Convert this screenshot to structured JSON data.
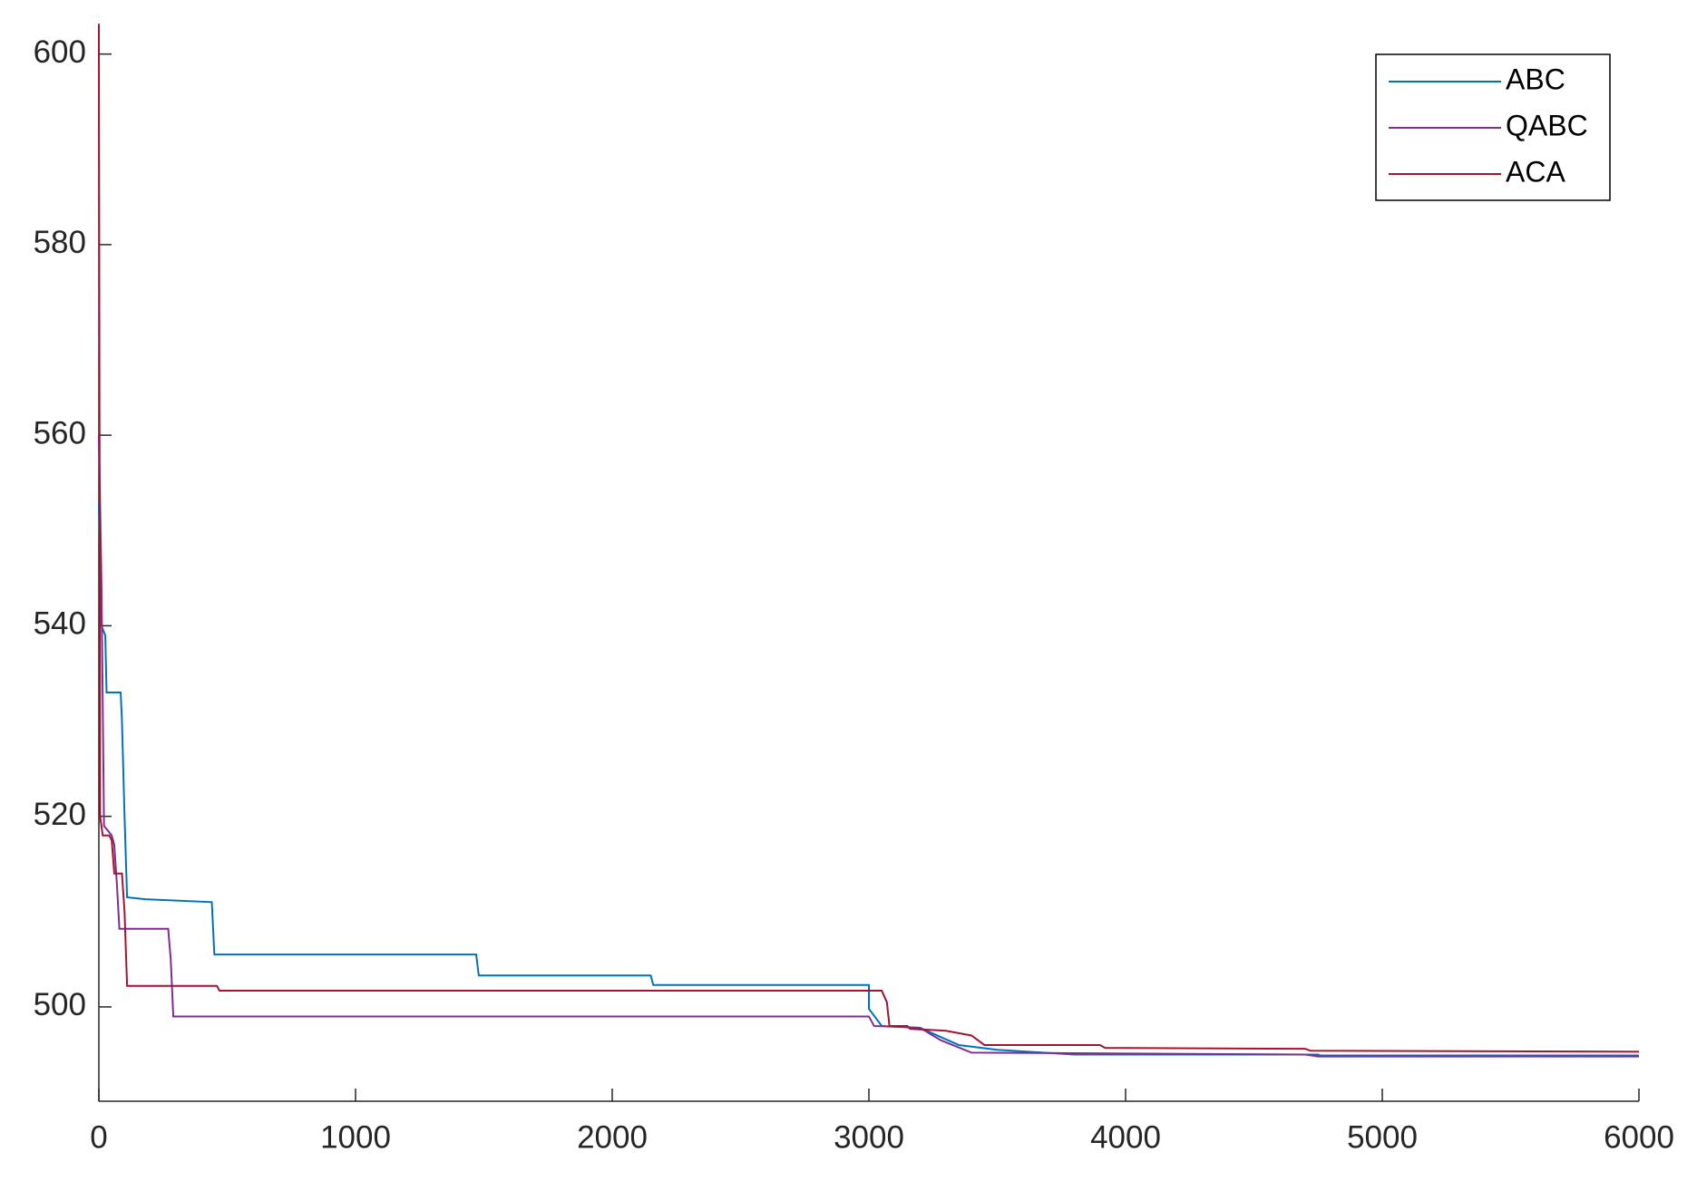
{
  "chart_data": {
    "type": "line",
    "xlim": [
      0,
      6000
    ],
    "xticks": [
      0,
      1000,
      2000,
      3000,
      4000,
      5000,
      6000
    ],
    "ylim": [
      490.1,
      603.2
    ],
    "yticks": [
      500,
      520,
      540,
      560,
      580,
      600
    ],
    "legend": "top-right",
    "series": [
      {
        "name": "ABC",
        "color": "#0072bd",
        "x": [
          0,
          10,
          25,
          30,
          85,
          90,
          100,
          110,
          180,
          440,
          450,
          1470,
          1480,
          2150,
          2160,
          3000,
          3000,
          3050,
          3200,
          3350,
          3500,
          3800,
          4750,
          4760,
          6000
        ],
        "values": [
          553,
          540,
          539,
          533,
          533,
          530,
          520,
          511.5,
          511.3,
          511,
          505.5,
          505.5,
          503.3,
          503.3,
          502.3,
          502.3,
          499.8,
          498,
          497.8,
          496,
          495.5,
          495,
          495,
          494.9,
          494.9
        ]
      },
      {
        "name": "QABC",
        "color": "#7e2f8e",
        "x": [
          0,
          10,
          20,
          50,
          60,
          70,
          80,
          270,
          280,
          290,
          3000,
          3020,
          3200,
          3280,
          3400,
          4700,
          4750,
          6000
        ],
        "values": [
          560,
          545,
          519,
          518,
          517,
          513,
          508.2,
          508.2,
          505,
          499,
          499,
          498,
          497.8,
          496.5,
          495.2,
          495,
          494.8,
          494.8
        ]
      },
      {
        "name": "ACA",
        "color": "#a2142f",
        "x": [
          0,
          5,
          15,
          40,
          50,
          60,
          90,
          100,
          110,
          460,
          470,
          3050,
          3070,
          3080,
          3150,
          3160,
          3300,
          3400,
          3450,
          3900,
          3920,
          4700,
          4720,
          6000
        ],
        "values": [
          603,
          520,
          518,
          518,
          517.5,
          514,
          514,
          510,
          502.2,
          502.2,
          501.7,
          501.7,
          500.5,
          498,
          498,
          497.7,
          497.5,
          497,
          496,
          496,
          495.7,
          495.6,
          495.4,
          495.3
        ]
      }
    ]
  }
}
